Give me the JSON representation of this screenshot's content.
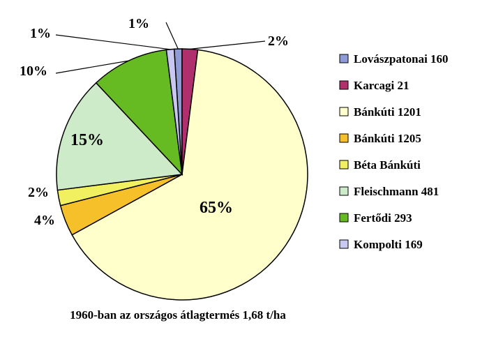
{
  "chart_data": {
    "type": "pie",
    "caption": "1960-ban az országos átlagtermés 1,68 t/ha",
    "slices": [
      {
        "name": "Lovászpatonai 160",
        "value": 1,
        "label": "1%",
        "color": "#8E9BD6"
      },
      {
        "name": "Karcagi 21",
        "value": 2,
        "label": "2%",
        "color": "#B0306E"
      },
      {
        "name": "Bánkúti 1201",
        "value": 65,
        "label": "65%",
        "color": "#FFFFCC"
      },
      {
        "name": "Bánkúti 1205",
        "value": 4,
        "label": "4%",
        "color": "#F5C02A"
      },
      {
        "name": "Béta Bánkúti",
        "value": 2,
        "label": "2%",
        "color": "#F0F060"
      },
      {
        "name": "Fleischmann 481",
        "value": 15,
        "label": "15%",
        "color": "#CDEBC8"
      },
      {
        "name": "Fertődi  293",
        "value": 10,
        "label": "10%",
        "color": "#66BB22"
      },
      {
        "name": "Kompolti 169",
        "value": 1,
        "label": "1%",
        "color": "#C8C8F0"
      }
    ]
  }
}
